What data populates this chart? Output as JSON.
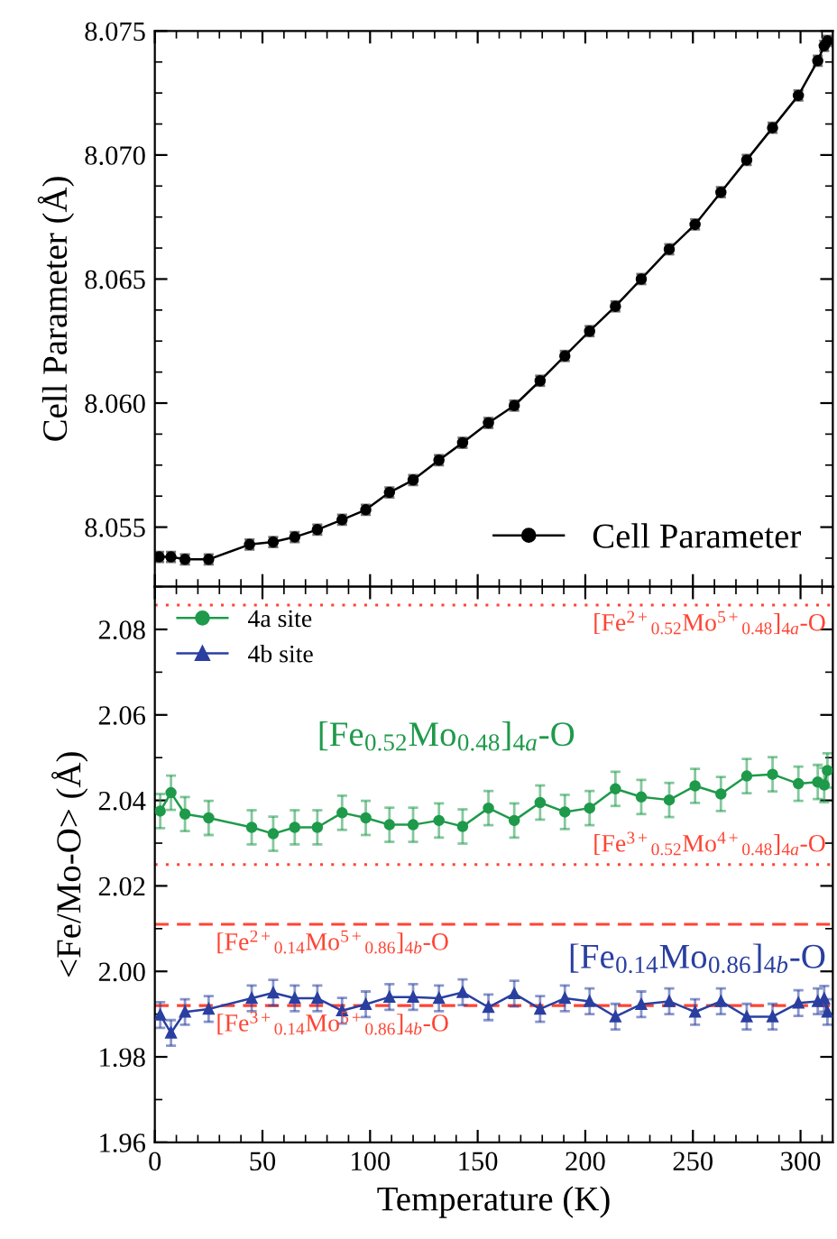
{
  "chart_data": [
    {
      "type": "line",
      "ylabel": "Cell Parameter (Å)",
      "xlim": [
        0,
        315
      ],
      "xticks": [
        0,
        50,
        100,
        150,
        200,
        250,
        300
      ],
      "ylim": [
        8.0526,
        8.075
      ],
      "yticks": [
        8.055,
        {
          "value": 8.06,
          "label": "8.060"
        },
        8.065,
        {
          "value": 8.07,
          "label": "8.070"
        },
        8.075
      ],
      "tick_labels": "y",
      "legend": "bottom right",
      "marker": "circle",
      "line_style": "solid",
      "grid": false,
      "series": [
        {
          "name": "Cell Parameter",
          "color": "#000000",
          "x": [
            2,
            7.5,
            14,
            25,
            44,
            55,
            65,
            75.5,
            87,
            98,
            109,
            120,
            132,
            143,
            155,
            167,
            179,
            190.5,
            202,
            214,
            226,
            239,
            251,
            263,
            275,
            287,
            299,
            308,
            311,
            312.5
          ],
          "values": [
            8.0538,
            8.0538,
            8.0537,
            8.0537,
            8.0543,
            8.0544,
            8.0546,
            8.0549,
            8.0553,
            8.0557,
            8.0564,
            8.0569,
            8.0577,
            8.0584,
            8.0592,
            8.0599,
            8.0609,
            8.0619,
            8.0629,
            8.0639,
            8.065,
            8.0662,
            8.0672,
            8.0685,
            8.0698,
            8.0711,
            8.0724,
            8.0738,
            8.0744,
            8.0746
          ],
          "errors": [
            0.0002,
            0.0002,
            0.0002,
            0.0002,
            0.0002,
            0.0002,
            0.0002,
            0.0002,
            0.0002,
            0.0002,
            0.0002,
            0.0002,
            0.0002,
            0.0002,
            0.0002,
            0.0002,
            0.0002,
            0.0002,
            0.0002,
            0.0002,
            0.0002,
            0.0002,
            0.0002,
            0.0002,
            0.0002,
            0.0002,
            0.0002,
            0.0002,
            0.0002,
            0.0002
          ]
        }
      ]
    },
    {
      "type": "line",
      "xlabel": "Temperature (K)",
      "ylabel": "<Fe/Mo-O> (Å)",
      "xlim": [
        0,
        315
      ],
      "xticks": [
        0,
        50,
        100,
        150,
        200,
        250,
        300
      ],
      "ylim": [
        1.96,
        2.09
      ],
      "yticks": [
        1.96,
        1.98,
        {
          "value": 2.0,
          "label": "2.00"
        },
        2.02,
        2.04,
        2.06,
        2.08
      ],
      "legend": "top left",
      "line_style": "solid",
      "grid": false,
      "series": [
        {
          "name": "4a site",
          "color": "#1e9a4a",
          "marker": "circle",
          "x": [
            2.5,
            7.5,
            14,
            25,
            45,
            55,
            65,
            75.5,
            87,
            98,
            109,
            120,
            132,
            143,
            155,
            167,
            179,
            190.5,
            202,
            214,
            226,
            239,
            251,
            263,
            275,
            287,
            299,
            308,
            311,
            312.5
          ],
          "values": [
            2.0375,
            2.0418,
            2.0368,
            2.0359,
            2.0337,
            2.0322,
            2.0337,
            2.0337,
            2.0371,
            2.0359,
            2.0343,
            2.0343,
            2.0353,
            2.0339,
            2.0382,
            2.0353,
            2.0395,
            2.0373,
            2.0382,
            2.0427,
            2.0408,
            2.0401,
            2.0434,
            2.0415,
            2.0457,
            2.0461,
            2.0439,
            2.0443,
            2.0436,
            2.047
          ],
          "errors": [
            0.004,
            0.004,
            0.004,
            0.004,
            0.004,
            0.004,
            0.004,
            0.004,
            0.004,
            0.004,
            0.004,
            0.004,
            0.004,
            0.004,
            0.004,
            0.004,
            0.004,
            0.004,
            0.004,
            0.004,
            0.004,
            0.004,
            0.004,
            0.004,
            0.004,
            0.004,
            0.004,
            0.004,
            0.004,
            0.004
          ]
        },
        {
          "name": "4b site",
          "color": "#2a3fa0",
          "marker": "triangle",
          "x": [
            2.5,
            7.5,
            14,
            25,
            45,
            55,
            65,
            75.5,
            87,
            98,
            109,
            120,
            132,
            143,
            155,
            167,
            179,
            190.5,
            202,
            214,
            226,
            239,
            251,
            263,
            275,
            287,
            299,
            308,
            311,
            312.5
          ],
          "values": [
            1.9898,
            1.9856,
            1.9905,
            1.9912,
            1.9937,
            1.995,
            1.9937,
            1.9937,
            1.9908,
            1.9923,
            1.994,
            1.994,
            1.9937,
            1.9951,
            1.9916,
            1.9948,
            1.9912,
            1.9937,
            1.993,
            1.9894,
            1.9923,
            1.993,
            1.9905,
            1.993,
            1.9894,
            1.9894,
            1.9926,
            1.993,
            1.9936,
            1.9905
          ],
          "errors": [
            0.003,
            0.003,
            0.003,
            0.003,
            0.003,
            0.003,
            0.003,
            0.003,
            0.003,
            0.003,
            0.003,
            0.003,
            0.003,
            0.003,
            0.003,
            0.003,
            0.003,
            0.003,
            0.003,
            0.003,
            0.003,
            0.003,
            0.003,
            0.003,
            0.003,
            0.003,
            0.003,
            0.003,
            0.003,
            0.003
          ]
        }
      ],
      "ref_lines": [
        {
          "axis": "y",
          "value": 2.0857,
          "label": "[Fe$^{2+}$$_{0.52}$Mo$^{5+}$$_{0.48}$]$_{4a}$-O",
          "color": "#ff4433",
          "line_style": "dotted"
        },
        {
          "axis": "y",
          "value": 2.025,
          "label": "[Fe$^{3+}$$_{0.52}$Mo$^{4+}$$_{0.48}$]$_{4a}$-O",
          "color": "#ff4433",
          "line_style": "dotted"
        },
        {
          "axis": "y",
          "value": 2.011,
          "label": "[Fe$^{2+}$$_{0.14}$Mo$^{5+}$$_{0.86}$]$_{4b}$-O",
          "color": "#ff4433",
          "line_style": "dashed"
        },
        {
          "axis": "y",
          "value": 1.992,
          "label": "[Fe$^{3+}$$_{0.14}$Mo$^{5+}$$_{0.86}$]$_{4b}$-O",
          "color": "#ff4433",
          "line_style": "dashed"
        }
      ],
      "annotations": [
        "[Fe$_{0.52}$Mo$_{0.48}$]$_{4a}$-O",
        "[Fe$_{0.14}$Mo$_{0.86}$]$_{4b}$-O"
      ]
    }
  ]
}
